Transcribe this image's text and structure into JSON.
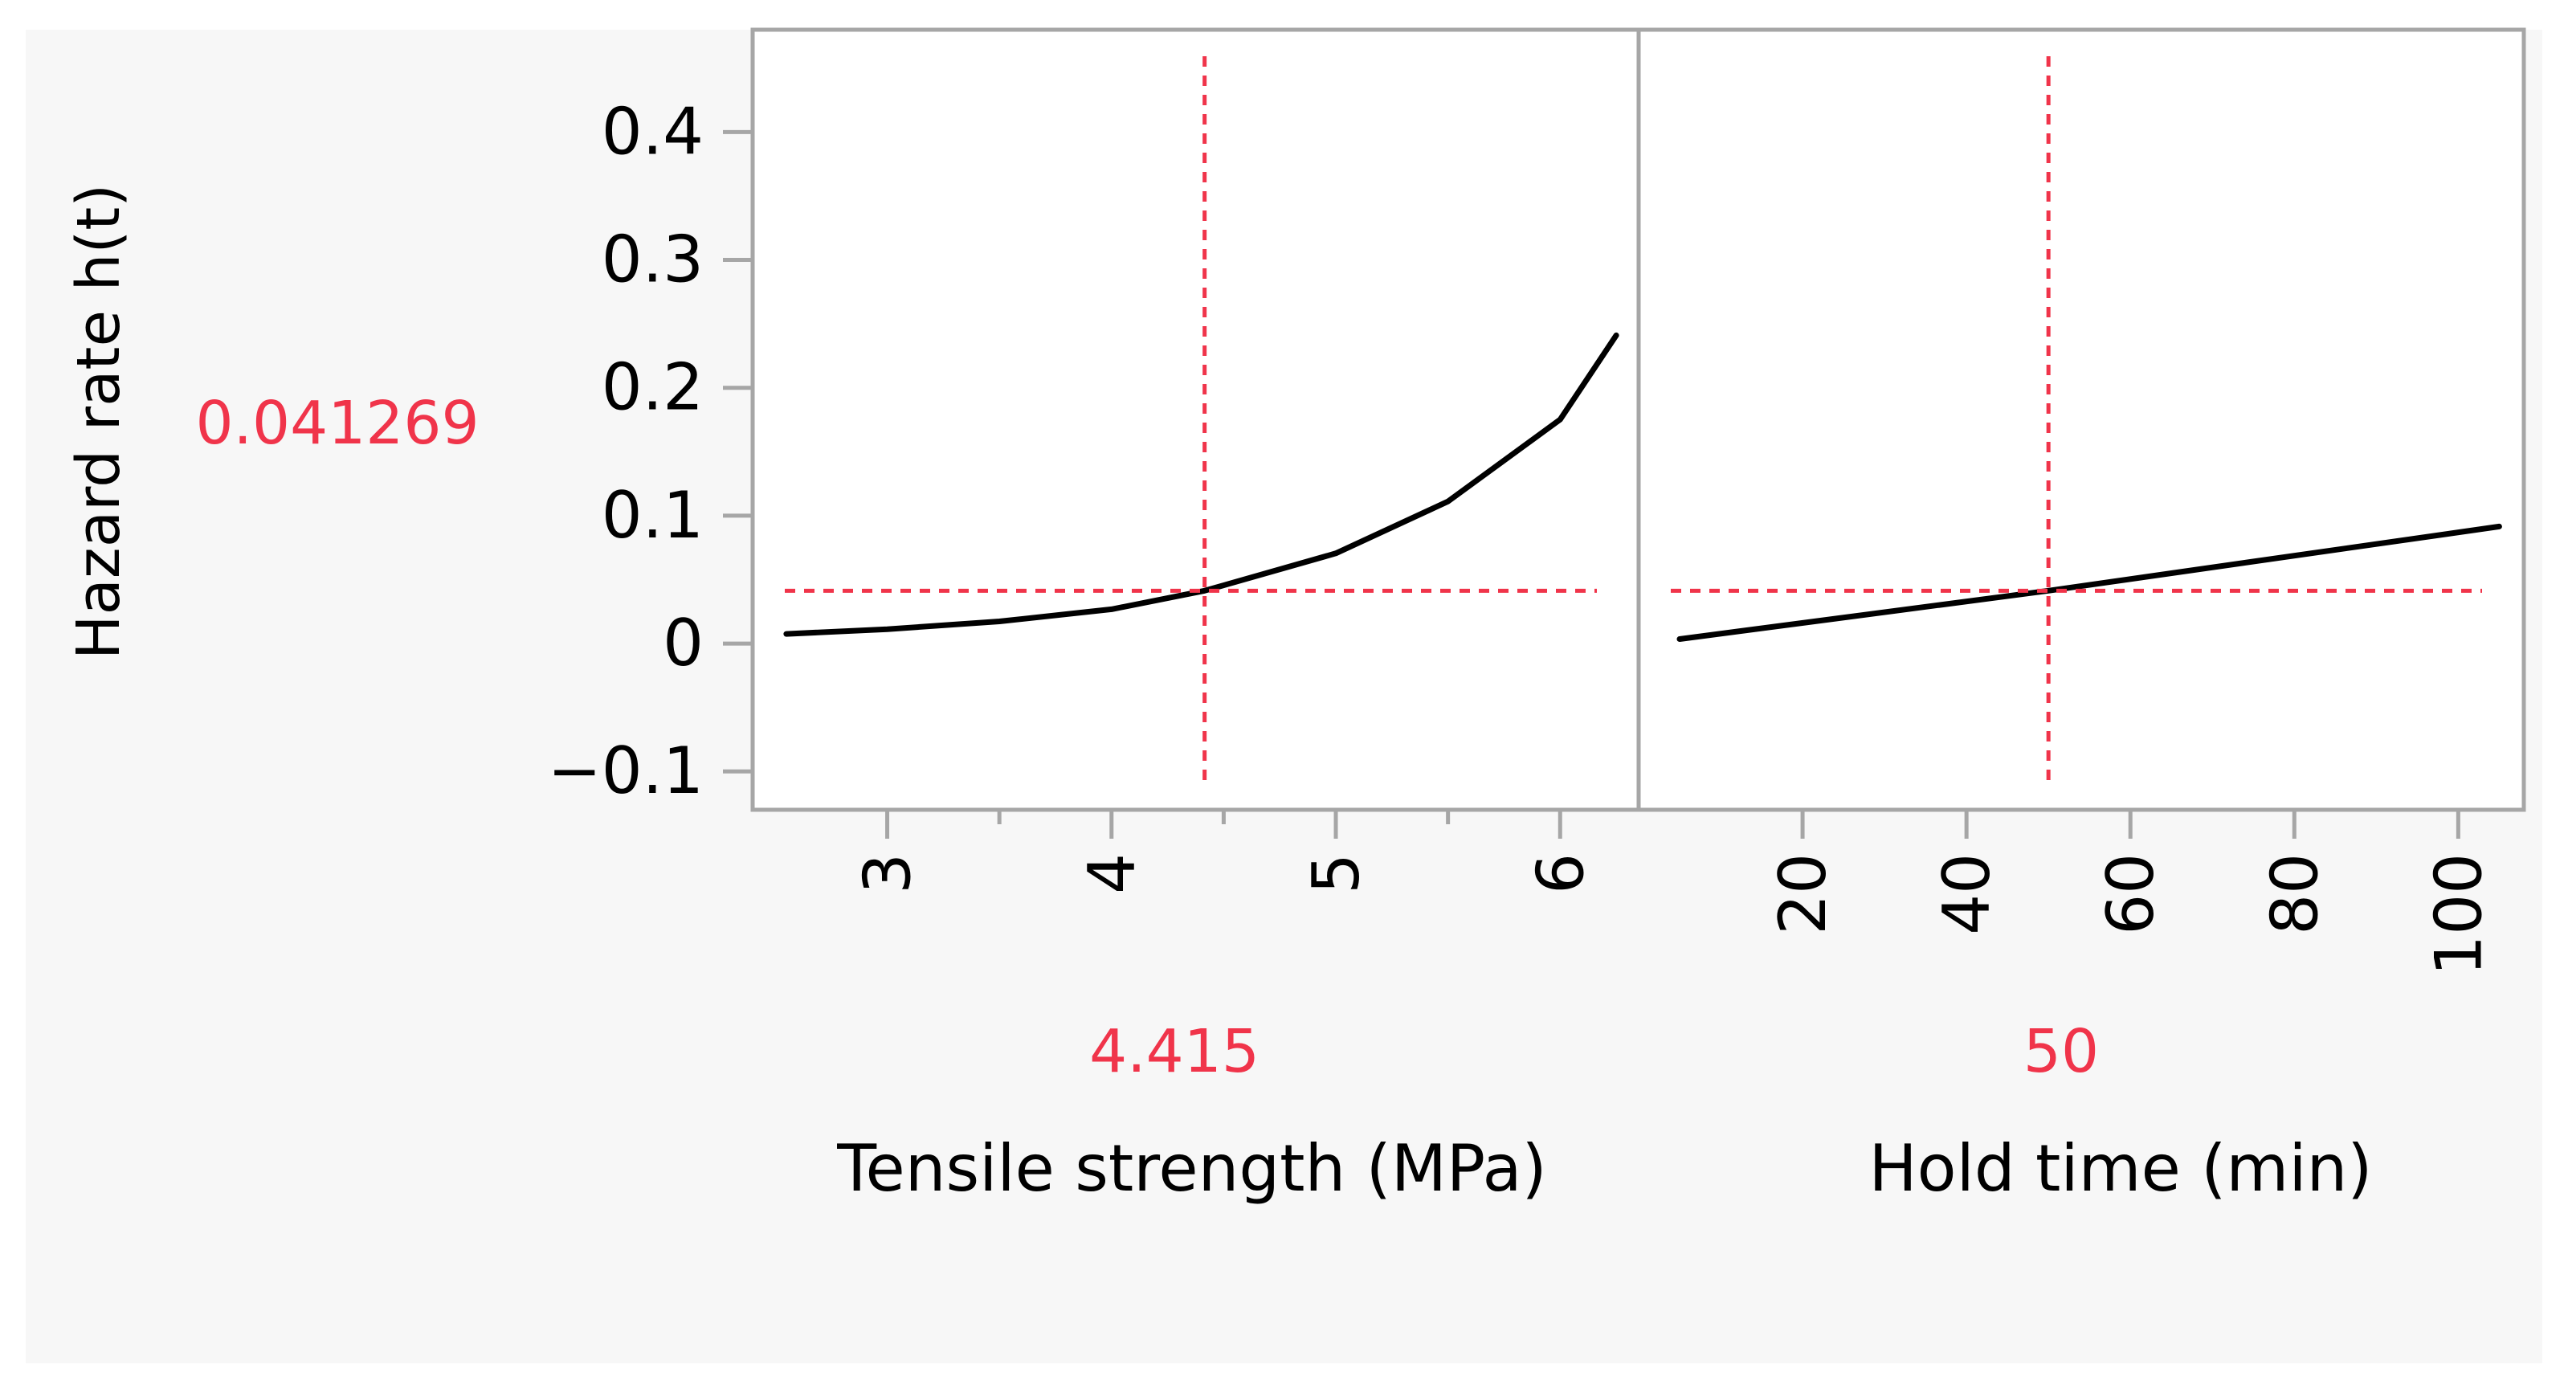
{
  "chart_data": {
    "type": "line",
    "ylabel": "Hazard rate h(t)",
    "y_current": "0.041269",
    "y_current_value": 0.041269,
    "ylim": [
      -0.13,
      0.48
    ],
    "y_ticks": [
      -0.1,
      0,
      0.1,
      0.2,
      0.3,
      0.4
    ],
    "y_tick_labels": [
      "−0.1",
      "0",
      "0.1",
      "0.2",
      "0.3",
      "0.4"
    ],
    "grid": false,
    "panels": [
      {
        "xlabel": "Tensile strength (MPa)",
        "x_current": "4.415",
        "x_current_value": 4.415,
        "xlim": [
          2.4,
          6.35
        ],
        "x_ticks": [
          3,
          4,
          5,
          6
        ],
        "x_minor_ticks": [
          3.5,
          4.5,
          5.5
        ],
        "x_tick_labels": [
          "3",
          "4",
          "5",
          "6"
        ],
        "series": [
          {
            "x": [
              2.55,
              3.0,
              3.5,
              4.0,
              4.415,
              5.0,
              5.5,
              6.0,
              6.25
            ],
            "y": [
              0.0075,
              0.0112,
              0.0173,
              0.0268,
              0.0413,
              0.0705,
              0.1111,
              0.1752,
              0.241
            ]
          }
        ]
      },
      {
        "xlabel": "Hold time (min)",
        "x_current": "50",
        "x_current_value": 50,
        "xlim": [
          0,
          108
        ],
        "x_ticks": [
          20,
          40,
          60,
          80,
          100
        ],
        "x_tick_labels": [
          "20",
          "40",
          "60",
          "80",
          "100"
        ],
        "series": [
          {
            "x": [
              5,
              50,
              105
            ],
            "y": [
              0.0035,
              0.0413,
              0.0915
            ]
          }
        ]
      }
    ]
  },
  "colors": {
    "background": "#f7f7f7",
    "plot_bg": "#ffffff",
    "frame": "#a6a6a6",
    "curve": "#000000",
    "crosshair": "#f0344a",
    "text": "#000000"
  }
}
